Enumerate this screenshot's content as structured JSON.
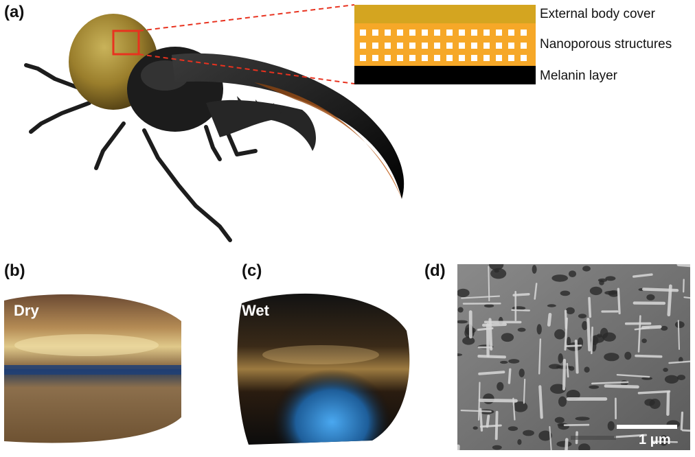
{
  "panels": {
    "a": {
      "label": "(a)"
    },
    "b": {
      "label": "(b)",
      "caption": "Dry"
    },
    "c": {
      "label": "(c)",
      "caption": "Wet"
    },
    "d": {
      "label": "(d)",
      "scale_bar": "1 μm"
    }
  },
  "layers": [
    {
      "label": "External body cover",
      "color": "#d4a520"
    },
    {
      "label": "Nanoporous structures",
      "color": "#f6a828"
    },
    {
      "label": "Melanin layer",
      "color": "#000000"
    }
  ],
  "colors": {
    "highlight_box": "#e8321f",
    "leader_lines": "#e8321f",
    "pore": "#ffffff"
  }
}
